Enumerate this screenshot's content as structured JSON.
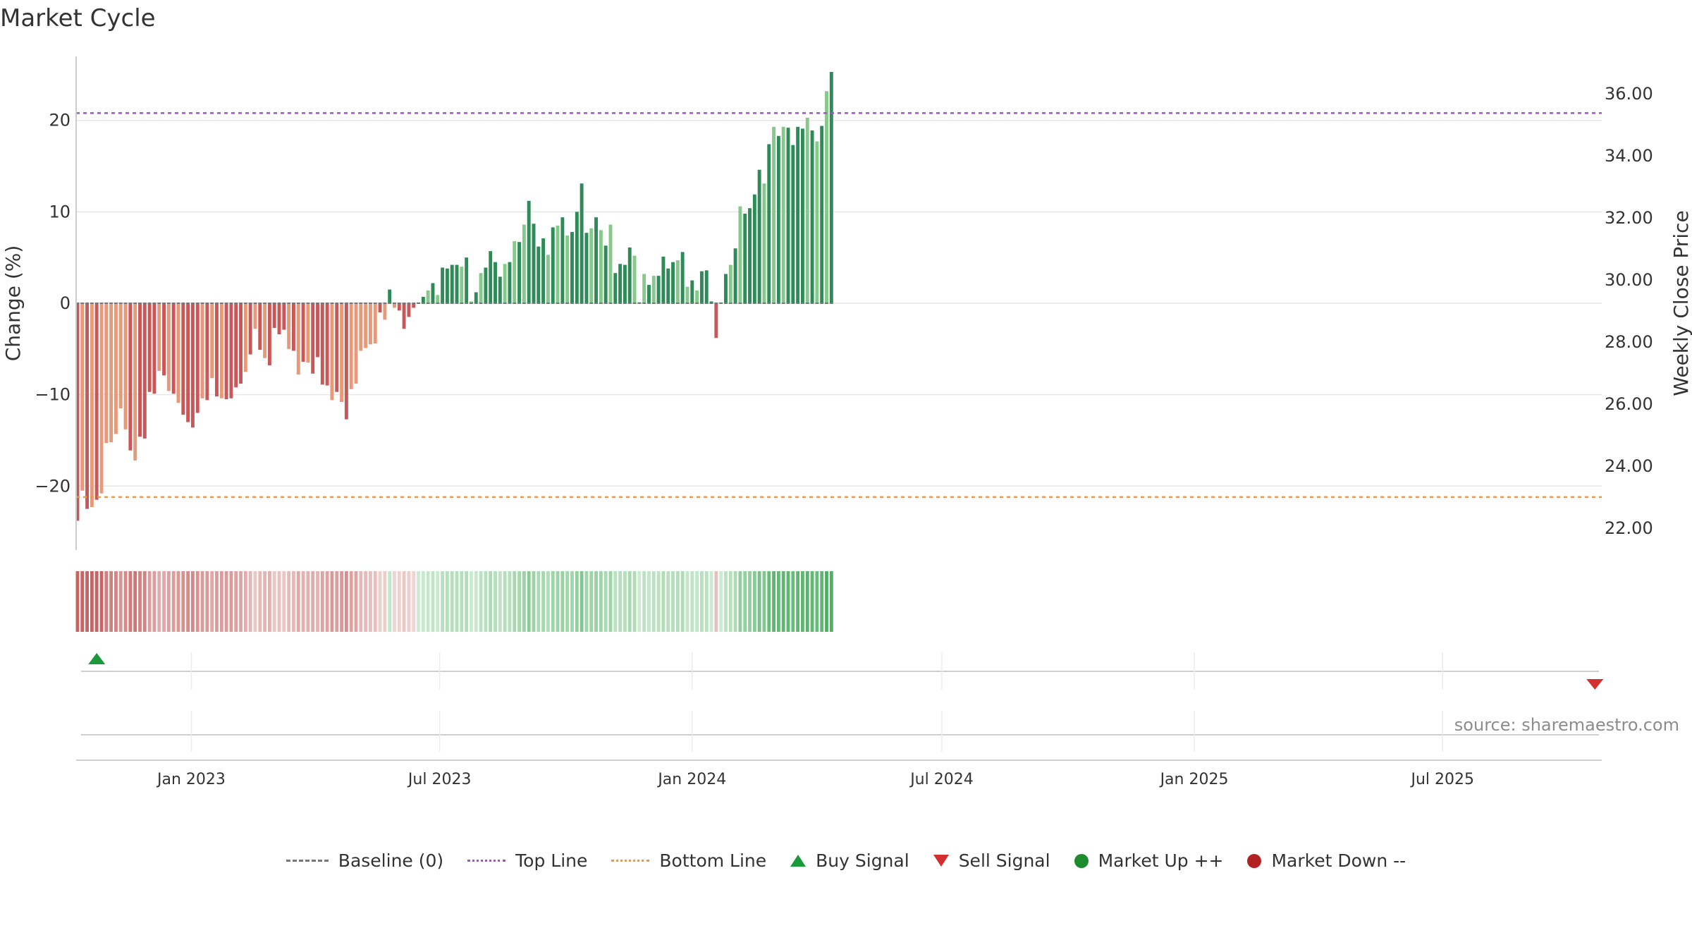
{
  "title": "Market Cycle",
  "source": "source: sharemaestro.com",
  "colors": {
    "down_dark": "#c95757",
    "down_light": "#e8997a",
    "up_dark": "#2e8b57",
    "up_light": "#86c98a",
    "top_line": "#9b59b6",
    "bottom_line": "#e8994a",
    "buy": "#1a9a3a",
    "sell": "#d32f2f",
    "market_up": "#1e8c2e",
    "market_down": "#b22222",
    "baseline": "#777777"
  },
  "legend": [
    {
      "label": "Baseline (0)",
      "symbol": "dash",
      "color": "#777777"
    },
    {
      "label": "Top Line",
      "symbol": "dot-line",
      "color": "#9b59b6"
    },
    {
      "label": "Bottom Line",
      "symbol": "dot-line",
      "color": "#e8994a"
    },
    {
      "label": "Buy Signal",
      "symbol": "triangle-up",
      "color": "#1a9a3a"
    },
    {
      "label": "Sell Signal",
      "symbol": "triangle-down",
      "color": "#d32f2f"
    },
    {
      "label": "Market Up ++",
      "symbol": "circle",
      "color": "#1e8c2e"
    },
    {
      "label": "Market Down --",
      "symbol": "circle",
      "color": "#b22222"
    }
  ],
  "chart_data": {
    "type": "bar",
    "title": "Market Cycle",
    "ylabel": "Change (%)",
    "y2label": "Weekly Close Price",
    "ylim": [
      -27,
      27
    ],
    "yticks": [
      -20,
      -10,
      0,
      10,
      20
    ],
    "y2ticks": [
      "22.00",
      "24.00",
      "26.00",
      "28.00",
      "30.00",
      "32.00",
      "34.00",
      "36.00"
    ],
    "top_line": 20.8,
    "bottom_line": -21.2,
    "x_start": "2022-10-10",
    "x_step_days": 3.5,
    "xlim": [
      "2022-10-09",
      "2025-10-25"
    ],
    "xticks": [
      {
        "label": "Jan 2023",
        "date": "2023-01-01"
      },
      {
        "label": "Jul 2023",
        "date": "2023-07-01"
      },
      {
        "label": "Jan 2024",
        "date": "2024-01-01"
      },
      {
        "label": "Jul 2024",
        "date": "2024-07-01"
      },
      {
        "label": "Jan 2025",
        "date": "2025-01-01"
      },
      {
        "label": "Jul 2025",
        "date": "2025-07-01"
      }
    ],
    "grid": true,
    "legend_position": "bottom",
    "values": [
      -23.8,
      -20.5,
      -22.5,
      -22.3,
      -21.5,
      -20.8,
      -15.3,
      -15.2,
      -14.3,
      -11.5,
      -13.8,
      -16.1,
      -17.2,
      -14.6,
      -14.8,
      -9.7,
      -9.9,
      -7.4,
      -7.9,
      -9.6,
      -9.9,
      -10.9,
      -12.2,
      -13,
      -13.6,
      -12,
      -10.4,
      -10.6,
      -8.2,
      -10.2,
      -10.4,
      -10.5,
      -10.4,
      -9.2,
      -8.8,
      -7.5,
      -5.6,
      -2.8,
      -5.1,
      -6,
      -6.8,
      -2.7,
      -3.4,
      -2.9,
      -5,
      -5.2,
      -7.8,
      -6.4,
      -6.5,
      -7.7,
      -5.9,
      -8.9,
      -9,
      -10.6,
      -9.7,
      -10.8,
      -12.7,
      -9.4,
      -8.8,
      -5.2,
      -4.9,
      -4.5,
      -4.4,
      -1,
      -1.8,
      1.5,
      -0.5,
      -0.8,
      -2.8,
      -1.5,
      -0.5,
      0.1,
      0.7,
      1.4,
      2.2,
      0.9,
      3.9,
      3.8,
      4.2,
      4.2,
      4,
      5,
      0.2,
      1.2,
      3.3,
      3.9,
      5.7,
      4.5,
      2.9,
      4.3,
      4.5,
      6.8,
      6.7,
      8.6,
      11.2,
      8.7,
      6.2,
      7.1,
      5.3,
      8.3,
      8.5,
      9.4,
      7.4,
      7.8,
      10,
      13.1,
      7.7,
      8.2,
      9.4,
      8,
      6.3,
      8.6,
      3.3,
      4.3,
      4.2,
      6.1,
      5.2,
      0.1,
      3.2,
      2,
      3,
      3,
      5.1,
      3.8,
      4.5,
      4.7,
      5.6,
      1.8,
      2.5,
      1.4,
      3.5,
      3.6,
      0.2,
      -3.8,
      0.1,
      3.2,
      4.2,
      6,
      10.6,
      9.8,
      10.4,
      11.9,
      14.6,
      13.1,
      17.4,
      19.3,
      18.3,
      19.3,
      19.2,
      17.3,
      19.3,
      19.1,
      20.3,
      18.9,
      17.7,
      19.4,
      23.2,
      25.3
    ],
    "signals": [
      {
        "type": "buy",
        "date": "2022-10-24"
      },
      {
        "type": "sell",
        "date": "2025-10-20"
      }
    ]
  }
}
